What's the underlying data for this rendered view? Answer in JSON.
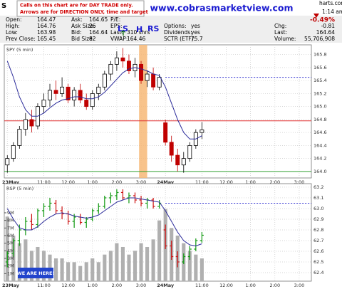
{
  "header": {
    "symbol": "S",
    "site": "harts.com",
    "time": "1:14 am",
    "change_pct": "-0.49%",
    "columns": [
      [
        [
          "Open:",
          "164.47"
        ],
        [
          "High:",
          "164.76"
        ],
        [
          "Low:",
          "163.98"
        ],
        [
          "Prev Close:",
          "165.45"
        ]
      ],
      [
        [
          "Ask:",
          "164.65"
        ],
        [
          "Ask Size:",
          "26"
        ],
        [
          "Bid:",
          "164.64"
        ],
        [
          "Bid Size:",
          "82"
        ]
      ],
      [
        [
          "P/E:"
        ],
        [
          "EPS:"
        ],
        [
          "Last:",
          "310 shrs"
        ],
        [
          "VWAP:",
          "164.46"
        ]
      ],
      [
        null,
        [
          "Options:",
          "yes"
        ],
        [
          "Dividends:",
          "yes"
        ],
        [
          "SCTR (ETF):",
          "75.7"
        ]
      ],
      [
        null,
        [
          "Chg:",
          "-0.81"
        ],
        [
          "Last:",
          "164.64"
        ],
        [
          "Volume:",
          "55,706,908"
        ]
      ]
    ]
  },
  "notes": {
    "callout": [
      "Calls on this chart are for DAY TRADE only.",
      "Arrows are for DIRECTION ONLY, time and target don't count."
    ],
    "website": "www.cobrasmarketview.com",
    "pattern": [
      "LS",
      "H",
      "RS"
    ],
    "marker": "WE ARE HERE!"
  },
  "chart_data": [
    {
      "type": "candlestick",
      "label": "SPY (5 min)",
      "x": [
        0,
        3,
        6,
        9,
        12,
        15,
        18,
        21,
        24,
        27,
        30,
        33,
        36,
        39,
        42,
        45,
        48,
        51,
        54,
        57,
        60,
        63,
        66,
        69,
        72,
        75,
        78,
        81,
        84,
        87,
        90,
        93,
        96
      ],
      "ohlc": [
        [
          164.1,
          164.25,
          163.98,
          164.2
        ],
        [
          164.2,
          164.45,
          164.15,
          164.4
        ],
        [
          164.4,
          164.7,
          164.35,
          164.65
        ],
        [
          164.65,
          164.9,
          164.55,
          164.8
        ],
        [
          164.8,
          164.95,
          164.6,
          164.7
        ],
        [
          164.7,
          165.05,
          164.65,
          165.0
        ],
        [
          165.0,
          165.2,
          164.9,
          165.1
        ],
        [
          165.1,
          165.35,
          165.0,
          165.25
        ],
        [
          165.25,
          165.4,
          165.1,
          165.2
        ],
        [
          165.2,
          165.45,
          165.15,
          165.3
        ],
        [
          165.3,
          165.35,
          165.05,
          165.1
        ],
        [
          165.1,
          165.3,
          165.0,
          165.25
        ],
        [
          165.25,
          165.35,
          165.05,
          165.1
        ],
        [
          165.1,
          165.2,
          164.95,
          165.0
        ],
        [
          165.0,
          165.25,
          164.95,
          165.2
        ],
        [
          165.2,
          165.35,
          165.1,
          165.3
        ],
        [
          165.3,
          165.55,
          165.25,
          165.5
        ],
        [
          165.5,
          165.7,
          165.4,
          165.65
        ],
        [
          165.65,
          165.85,
          165.55,
          165.75
        ],
        [
          165.75,
          165.9,
          165.6,
          165.7
        ],
        [
          165.7,
          165.8,
          165.5,
          165.55
        ],
        [
          165.55,
          165.75,
          165.45,
          165.65
        ],
        [
          165.65,
          165.7,
          165.35,
          165.4
        ],
        [
          165.4,
          165.55,
          165.3,
          165.5
        ],
        [
          165.5,
          165.6,
          165.25,
          165.3
        ],
        [
          165.3,
          165.5,
          165.25,
          165.45
        ],
        [
          164.75,
          164.8,
          164.4,
          164.45
        ],
        [
          164.45,
          164.55,
          164.15,
          164.25
        ],
        [
          164.25,
          164.35,
          164.0,
          164.1
        ],
        [
          164.1,
          164.3,
          163.98,
          164.2
        ],
        [
          164.2,
          164.45,
          164.15,
          164.4
        ],
        [
          164.4,
          164.65,
          164.35,
          164.6
        ],
        [
          164.6,
          164.76,
          164.5,
          164.64
        ]
      ],
      "ma": [
        165.7,
        165.45,
        165.15,
        164.95,
        164.85,
        164.85,
        164.9,
        164.98,
        165.05,
        165.1,
        165.12,
        165.15,
        165.15,
        165.12,
        165.12,
        165.15,
        165.22,
        165.32,
        165.42,
        165.52,
        165.58,
        165.6,
        165.58,
        165.55,
        165.5,
        165.48,
        165.3,
        165.05,
        164.8,
        164.6,
        164.5,
        164.5,
        164.55
      ],
      "xlim": [
        -1.5,
        150
      ],
      "xticks": [
        {
          "value": 0,
          "label": "23May"
        },
        {
          "value": 18,
          "label": "11:00"
        },
        {
          "value": 30,
          "label": "12:00"
        },
        {
          "value": 42,
          "label": "1:00"
        },
        {
          "value": 54,
          "label": "2:00"
        },
        {
          "value": 66,
          "label": "3:00"
        },
        {
          "value": 78,
          "label": "24May"
        },
        {
          "value": 96,
          "label": "11:00"
        },
        {
          "value": 108,
          "label": "12:00"
        },
        {
          "value": 120,
          "label": "1:00"
        },
        {
          "value": 132,
          "label": "2:00"
        },
        {
          "value": 144,
          "label": "3:00"
        }
      ],
      "ylim": [
        163.9,
        165.95
      ],
      "yticks": [
        {
          "value": 164,
          "label": "164.0"
        },
        164.2,
        164.4,
        164.6,
        164.8,
        {
          "value": 165,
          "label": "165.0"
        },
        165.2,
        165.4,
        165.6,
        165.8
      ],
      "grid": true,
      "up_color": "#000000",
      "down_color": "#c00000",
      "ma_color": "#2b2b9a",
      "band": {
        "x": [
          65,
          69
        ],
        "color": "#f7b877"
      },
      "hlines": [
        {
          "value": 164.78,
          "color": "#e03030"
        },
        {
          "value": 164.0,
          "color": "#30a030"
        },
        {
          "value": 165.45,
          "color": "#3030d0",
          "dashed": true,
          "start": 78
        }
      ]
    },
    {
      "type": "ohlc",
      "label": "RSP (5 min)",
      "x": [
        0,
        3,
        6,
        9,
        12,
        15,
        18,
        21,
        24,
        27,
        30,
        33,
        36,
        39,
        42,
        45,
        48,
        51,
        54,
        57,
        60,
        63,
        66,
        69,
        72,
        75,
        78,
        81,
        84,
        87,
        90,
        93,
        96
      ],
      "ohlc": [
        [
          62.5,
          62.6,
          62.45,
          62.58
        ],
        [
          62.58,
          62.72,
          62.55,
          62.7
        ],
        [
          62.7,
          62.85,
          62.65,
          62.8
        ],
        [
          62.8,
          62.92,
          62.75,
          62.88
        ],
        [
          62.88,
          62.95,
          62.8,
          62.85
        ],
        [
          62.85,
          63.0,
          62.82,
          62.98
        ],
        [
          62.98,
          63.05,
          62.92,
          63.02
        ],
        [
          63.02,
          63.1,
          62.98,
          63.05
        ],
        [
          63.05,
          63.08,
          62.95,
          62.98
        ],
        [
          62.98,
          63.02,
          62.9,
          62.95
        ],
        [
          62.95,
          62.98,
          62.85,
          62.88
        ],
        [
          62.88,
          62.95,
          62.82,
          62.92
        ],
        [
          62.92,
          62.95,
          62.85,
          62.87
        ],
        [
          62.87,
          62.92,
          62.82,
          62.9
        ],
        [
          62.9,
          63.0,
          62.88,
          62.98
        ],
        [
          62.98,
          63.05,
          62.95,
          63.02
        ],
        [
          63.02,
          63.12,
          63.0,
          63.1
        ],
        [
          63.1,
          63.15,
          63.05,
          63.12
        ],
        [
          63.12,
          63.18,
          63.08,
          63.15
        ],
        [
          63.15,
          63.18,
          63.08,
          63.1
        ],
        [
          63.1,
          63.15,
          63.05,
          63.12
        ],
        [
          63.12,
          63.15,
          63.05,
          63.08
        ],
        [
          63.08,
          63.12,
          63.02,
          63.05
        ],
        [
          63.05,
          63.1,
          63.0,
          63.08
        ],
        [
          63.08,
          63.1,
          63.0,
          63.02
        ],
        [
          63.02,
          63.08,
          63.0,
          63.05
        ],
        [
          62.8,
          62.85,
          62.62,
          62.65
        ],
        [
          62.65,
          62.7,
          62.52,
          62.55
        ],
        [
          62.55,
          62.6,
          62.45,
          62.5
        ],
        [
          62.5,
          62.58,
          62.48,
          62.55
        ],
        [
          62.55,
          62.65,
          62.52,
          62.62
        ],
        [
          62.62,
          62.72,
          62.6,
          62.7
        ],
        [
          62.7,
          62.78,
          62.68,
          62.75
        ]
      ],
      "ma": [
        63.0,
        62.9,
        62.82,
        62.8,
        62.8,
        62.83,
        62.88,
        62.92,
        62.95,
        62.96,
        62.95,
        62.93,
        62.92,
        62.91,
        62.92,
        62.94,
        62.98,
        63.02,
        63.06,
        63.08,
        63.1,
        63.1,
        63.09,
        63.08,
        63.07,
        63.06,
        62.98,
        62.88,
        62.78,
        62.7,
        62.66,
        62.65,
        62.67
      ],
      "volume": [
        8500000,
        6000000,
        5000000,
        5500000,
        4000000,
        4500000,
        4000000,
        3500000,
        3000000,
        3000000,
        2500000,
        2500000,
        2000000,
        2500000,
        3000000,
        2500000,
        3500000,
        4000000,
        5000000,
        4500000,
        3500000,
        4000000,
        5000000,
        4500000,
        5500000,
        8000000,
        9500000,
        7000000,
        6000000,
        5000000,
        4000000,
        3500000,
        3000000
      ],
      "vlim": [
        0,
        12840000
      ],
      "vticks": [
        {
          "value": 1000000,
          "label": "1M"
        },
        {
          "value": 2000000,
          "label": "2M"
        },
        {
          "value": 3000000,
          "label": "3M"
        },
        {
          "value": 4000000,
          "label": "4M"
        },
        {
          "value": 5000000,
          "label": "5M"
        },
        {
          "value": 6000000,
          "label": "6M"
        },
        {
          "value": 7000000,
          "label": "7M"
        },
        {
          "value": 8000000,
          "label": "8M"
        },
        {
          "value": 9000000,
          "label": "9M"
        }
      ],
      "xlim": [
        -1.5,
        150
      ],
      "xticks": [
        {
          "value": 0,
          "label": "23May"
        },
        {
          "value": 18,
          "label": "11:00"
        },
        {
          "value": 30,
          "label": "12:00"
        },
        {
          "value": 42,
          "label": "1:00"
        },
        {
          "value": 54,
          "label": "2:00"
        },
        {
          "value": 66,
          "label": "3:00"
        },
        {
          "value": 78,
          "label": "24May"
        },
        {
          "value": 96,
          "label": "11:00"
        },
        {
          "value": 108,
          "label": "12:00"
        },
        {
          "value": 120,
          "label": "1:00"
        },
        {
          "value": 132,
          "label": "2:00"
        },
        {
          "value": 144,
          "label": "3:00"
        }
      ],
      "ylim": [
        62.32,
        63.233
      ],
      "yticks": [
        62.4,
        62.5,
        62.6,
        62.7,
        62.8,
        62.9,
        {
          "value": 63,
          "label": "63.0"
        },
        63.1,
        63.2
      ],
      "grid": true,
      "up_color": "#119911",
      "down_color": "#cc1111",
      "ma_color": "#2b2b9a",
      "volume_color": "#b0b0b0",
      "hlines": [
        {
          "value": 63.05,
          "color": "#3030d0",
          "dashed": true,
          "start": 78
        }
      ]
    }
  ]
}
